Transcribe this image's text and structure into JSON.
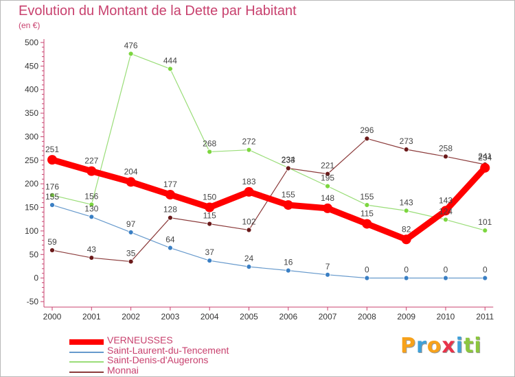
{
  "title": "Evolution du Montant de la Dette par Habitant",
  "unit": "(en €)",
  "logo": {
    "text": "Proxiti",
    "letters": [
      {
        "ch": "P",
        "color": "#f7a21b"
      },
      {
        "ch": "r",
        "color": "#3fa0d8"
      },
      {
        "ch": "o",
        "color": "#f7a21b"
      },
      {
        "ch": "x",
        "color": "#e8334a"
      },
      {
        "ch": "i",
        "color": "#3fa0d8"
      },
      {
        "ch": "t",
        "color": "#8cc63f"
      },
      {
        "ch": "i",
        "color": "#8cc63f"
      }
    ]
  },
  "chart_data": {
    "type": "line",
    "x": [
      "2000",
      "2001",
      "2002",
      "2003",
      "2004",
      "2005",
      "2006",
      "2007",
      "2008",
      "2009",
      "2010",
      "2011"
    ],
    "ylim": [
      -50,
      500
    ],
    "yticks": [
      "-50",
      "0",
      "50",
      "100",
      "150",
      "200",
      "250",
      "300",
      "350",
      "400",
      "450",
      "500"
    ],
    "grid": false,
    "legend_position": "bottom-left",
    "series": [
      {
        "name": "Saint-Laurent-du-Tencement",
        "color": "#6699cc",
        "marker": "#3a7fc4",
        "width": 1.2,
        "r": 3.5,
        "values": [
          155,
          130,
          97,
          64,
          37,
          24,
          16,
          7,
          0,
          0,
          0,
          0
        ],
        "labels": [
          "155",
          "130",
          "97",
          "64",
          "37",
          "24",
          "16",
          "7",
          "0",
          "0",
          "0",
          "0"
        ]
      },
      {
        "name": "Saint-Denis-d'Augerons",
        "color": "#99dd77",
        "marker": "#7cd63f",
        "width": 1.2,
        "r": 3.5,
        "values": [
          176,
          156,
          476,
          444,
          268,
          272,
          234,
          195,
          155,
          143,
          124,
          101
        ],
        "labels": [
          "176",
          "156",
          "476",
          "444",
          "268",
          "272",
          "234",
          "195",
          "155",
          "143",
          "124",
          "101"
        ]
      },
      {
        "name": "Monnai",
        "color": "#8b3a3a",
        "marker": "#6b1a1a",
        "width": 1.2,
        "r": 3.5,
        "values": [
          59,
          43,
          35,
          128,
          115,
          102,
          233,
          221,
          296,
          273,
          258,
          241
        ],
        "labels": [
          "59",
          "43",
          "35",
          "128",
          "115",
          "102",
          "233",
          "221",
          "296",
          "273",
          "258",
          "241"
        ]
      },
      {
        "name": "VERNEUSSES",
        "color": "#ff0000",
        "marker": "#ff0000",
        "width": 9,
        "r": 7,
        "values": [
          251,
          227,
          204,
          177,
          150,
          183,
          155,
          148,
          115,
          82,
          143,
          234
        ],
        "labels": [
          "251",
          "227",
          "204",
          "177",
          "150",
          "183",
          "155",
          "148",
          "115",
          "82",
          "143",
          "234"
        ]
      }
    ]
  },
  "legend": [
    {
      "name": "VERNEUSSES",
      "color": "#ff0000",
      "width": 8
    },
    {
      "name": "Saint-Laurent-du-Tencement",
      "color": "#6699cc",
      "width": 2
    },
    {
      "name": "Saint-Denis-d'Augerons",
      "color": "#99dd77",
      "width": 2
    },
    {
      "name": "Monnai",
      "color": "#8b3a3a",
      "width": 2
    }
  ]
}
